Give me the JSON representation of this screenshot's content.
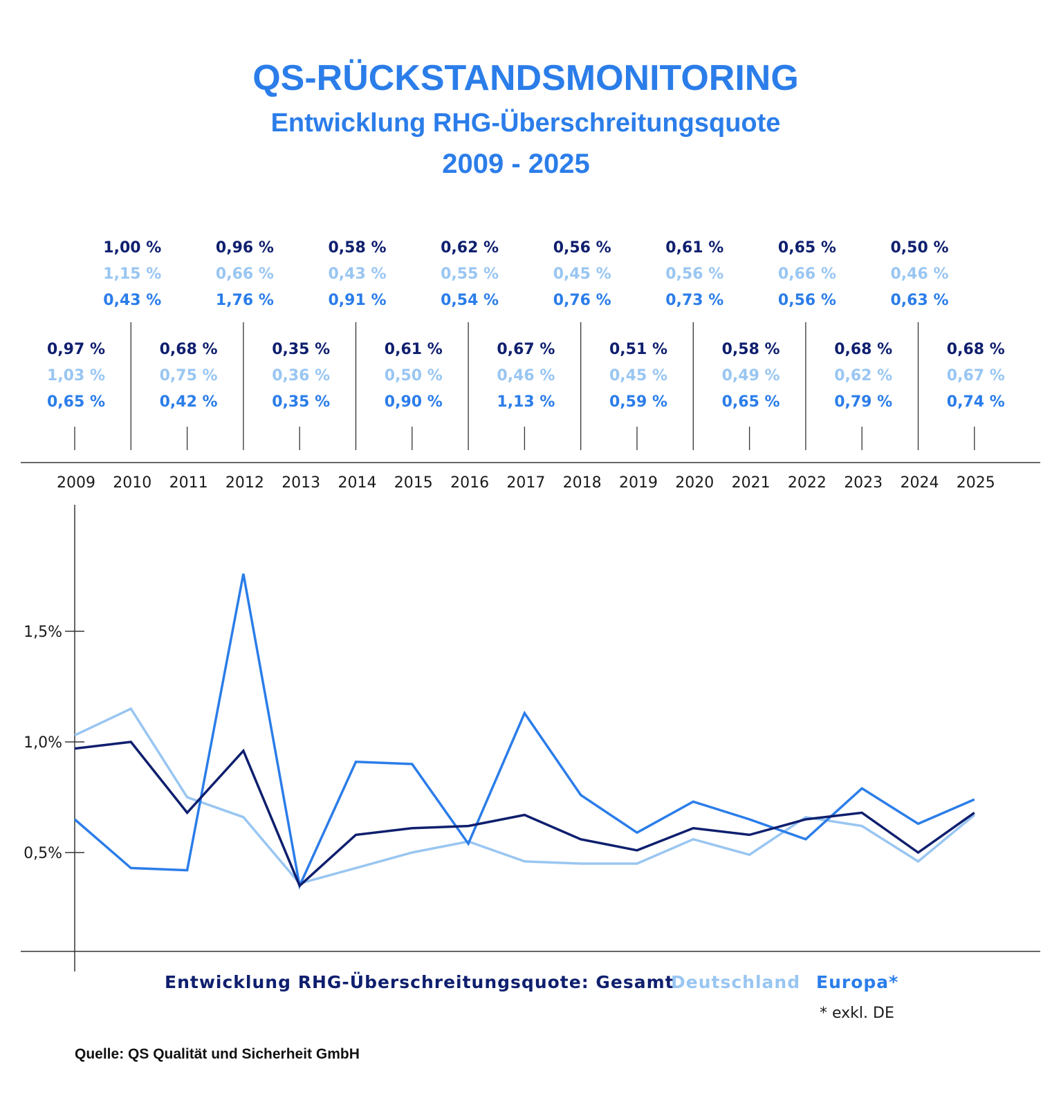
{
  "title": "QS-RÜCKSTANDSMONITORING",
  "subtitle": "Entwicklung RHG-Überschreitungsquote",
  "period": "2009 - 2025",
  "colors": {
    "gesamt": "#0f1f6e",
    "deutschland": "#99c6f2",
    "europa": "#2b7de9",
    "title": "#2b7de9",
    "axis": "#333333"
  },
  "value_labels": [
    {
      "year": "2009",
      "gesamt": "0,97 %",
      "deutschland": "1,03 %",
      "europa": "0,65 %"
    },
    {
      "year": "2010",
      "gesamt": "1,00 %",
      "deutschland": "1,15 %",
      "europa": "0,43 %"
    },
    {
      "year": "2011",
      "gesamt": "0,68 %",
      "deutschland": "0,75 %",
      "europa": "0,42 %"
    },
    {
      "year": "2012",
      "gesamt": "0,96 %",
      "deutschland": "0,66 %",
      "europa": "1,76 %"
    },
    {
      "year": "2013",
      "gesamt": "0,35 %",
      "deutschland": "0,36 %",
      "europa": "0,35 %"
    },
    {
      "year": "2014",
      "gesamt": "0,58 %",
      "deutschland": "0,43 %",
      "europa": "0,91 %"
    },
    {
      "year": "2015",
      "gesamt": "0,61 %",
      "deutschland": "0,50 %",
      "europa": "0,90 %"
    },
    {
      "year": "2016",
      "gesamt": "0,62 %",
      "deutschland": "0,55 %",
      "europa": "0,54 %"
    },
    {
      "year": "2017",
      "gesamt": "0,67 %",
      "deutschland": "0,46 %",
      "europa": "1,13 %"
    },
    {
      "year": "2018",
      "gesamt": "0,56 %",
      "deutschland": "0,45 %",
      "europa": "0,76 %"
    },
    {
      "year": "2019",
      "gesamt": "0,51 %",
      "deutschland": "0,45 %",
      "europa": "0,59 %"
    },
    {
      "year": "2020",
      "gesamt": "0,61 %",
      "deutschland": "0,56 %",
      "europa": "0,73 %"
    },
    {
      "year": "2021",
      "gesamt": "0,58 %",
      "deutschland": "0,49 %",
      "europa": "0,65 %"
    },
    {
      "year": "2022",
      "gesamt": "0,65 %",
      "deutschland": "0,66 %",
      "europa": "0,56 %"
    },
    {
      "year": "2023",
      "gesamt": "0,68 %",
      "deutschland": "0,62 %",
      "europa": "0,79 %"
    },
    {
      "year": "2024",
      "gesamt": "0,50 %",
      "deutschland": "0,46 %",
      "europa": "0,63 %"
    },
    {
      "year": "2025",
      "gesamt": "0,68 %",
      "deutschland": "0,67 %",
      "europa": "0,74 %"
    }
  ],
  "chart_data": {
    "type": "line",
    "x": [
      "2009",
      "2010",
      "2011",
      "2012",
      "2013",
      "2014",
      "2015",
      "2016",
      "2017",
      "2018",
      "2019",
      "2020",
      "2021",
      "2022",
      "2023",
      "2024",
      "2025"
    ],
    "series": [
      {
        "name": "Gesamt",
        "key": "gesamt",
        "values": [
          0.97,
          1.0,
          0.68,
          0.96,
          0.35,
          0.58,
          0.61,
          0.62,
          0.67,
          0.56,
          0.51,
          0.61,
          0.58,
          0.65,
          0.68,
          0.5,
          0.68
        ]
      },
      {
        "name": "Deutschland",
        "key": "deutschland",
        "values": [
          1.03,
          1.15,
          0.75,
          0.66,
          0.36,
          0.43,
          0.5,
          0.55,
          0.46,
          0.45,
          0.45,
          0.56,
          0.49,
          0.66,
          0.62,
          0.46,
          0.67
        ]
      },
      {
        "name": "Europa*",
        "key": "europa",
        "values": [
          0.65,
          0.43,
          0.42,
          1.76,
          0.35,
          0.91,
          0.9,
          0.54,
          1.13,
          0.76,
          0.59,
          0.73,
          0.65,
          0.56,
          0.79,
          0.63,
          0.74
        ]
      }
    ],
    "yticks": [
      "1,5%",
      "1,0%",
      "0,5%"
    ],
    "ytick_values": [
      1.5,
      1.0,
      0.5
    ],
    "grid": false
  },
  "legend": {
    "gesamt_label": "Entwicklung RHG-Überschreitungsquote: Gesamt",
    "deutschland_label": "Deutschland",
    "europa_label": "Europa*",
    "footnote": "* exkl. DE"
  },
  "source": "Quelle: QS Qualität und Sicherheit GmbH"
}
